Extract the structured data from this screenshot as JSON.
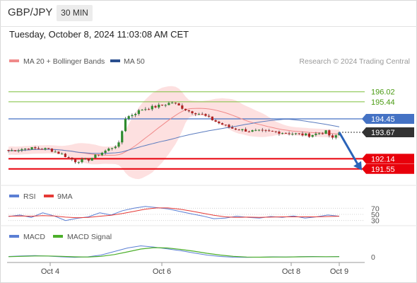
{
  "header": {
    "symbol": "GBP/JPY",
    "timeframe": "30 MIN",
    "datetime": "Tuesday, October 8, 2024 11:03:08 AM CET"
  },
  "legend": {
    "ma20_label": "MA 20 + Bollinger Bands",
    "ma50_label": "MA 50",
    "credit": "Research © 2024 Trading Central",
    "rsi_label": "RSI",
    "rsi_ma_label": "9MA",
    "macd_label": "MACD",
    "macd_signal_label": "MACD Signal"
  },
  "colors": {
    "resistance": "#7dbf3c",
    "resistance_text": "#4a9b12",
    "pivot": "#4472c4",
    "support": "#e8000b",
    "current": "#333333",
    "ma20": "#f08a8a",
    "ma50": "#5a7bbf",
    "band_fill": "#fde0e0",
    "candle_up": "#2e8b2e",
    "candle_down": "#b22222",
    "arrow": "#2a63b8",
    "rsi": "#5b7fd4",
    "rsi_ma": "#e53935",
    "macd": "#5b7fd4",
    "macd_signal": "#4caf2a"
  },
  "chart_data": [
    {
      "type": "candlestick",
      "x_axis": {
        "ticks": [
          "Oct 4",
          "Oct 6",
          "Oct 8",
          "Oct 9"
        ]
      },
      "ylim": [
        190.6,
        197.4
      ],
      "levels": [
        {
          "name": "resistance-2",
          "value": 196.02,
          "label": "196.02",
          "style": "resistance"
        },
        {
          "name": "resistance-1",
          "value": 195.44,
          "label": "195.44",
          "style": "resistance"
        },
        {
          "name": "pivot",
          "value": 194.45,
          "label": "194.45",
          "style": "pivot"
        },
        {
          "name": "last-price",
          "value": 193.67,
          "label": "193.67",
          "style": "current"
        },
        {
          "name": "support-1",
          "value": 192.14,
          "label": "192.14",
          "style": "support"
        },
        {
          "name": "support-2",
          "value": 191.55,
          "label": "191.55",
          "style": "support"
        }
      ],
      "path_hint": [
        [
          0,
          192.6
        ],
        [
          6,
          192.75
        ],
        [
          12,
          192.7
        ],
        [
          16,
          192.4
        ],
        [
          20,
          192.0
        ],
        [
          24,
          192.1
        ],
        [
          28,
          192.5
        ],
        [
          33,
          193.0
        ],
        [
          35,
          194.5
        ],
        [
          40,
          195.0
        ],
        [
          45,
          195.2
        ],
        [
          49,
          195.4
        ],
        [
          54,
          194.9
        ],
        [
          58,
          194.7
        ],
        [
          63,
          194.2
        ],
        [
          67,
          193.9
        ],
        [
          72,
          193.75
        ],
        [
          80,
          193.7
        ],
        [
          85,
          193.6
        ],
        [
          90,
          193.5
        ],
        [
          95,
          193.7
        ],
        [
          97,
          193.3
        ],
        [
          99,
          193.67
        ]
      ],
      "forecast": {
        "from": 193.67,
        "to": 191.55
      }
    },
    {
      "type": "line",
      "name": "rsi",
      "ticks": [
        "70",
        "50",
        "30"
      ],
      "series": [
        {
          "name": "RSI",
          "values": [
            43,
            48,
            40,
            55,
            45,
            30,
            37,
            42,
            55,
            48,
            62,
            70,
            76,
            72,
            68,
            60,
            52,
            45,
            36,
            38,
            44,
            40,
            38,
            43,
            40,
            45,
            38,
            42,
            48,
            44
          ]
        },
        {
          "name": "9MA",
          "values": [
            44,
            45,
            44,
            46,
            45,
            41,
            39,
            40,
            44,
            47,
            53,
            60,
            67,
            71,
            71,
            67,
            61,
            54,
            47,
            42,
            40,
            41,
            40,
            41,
            42,
            42,
            42,
            42,
            43,
            44
          ]
        }
      ]
    },
    {
      "type": "line",
      "name": "macd",
      "ticks": [
        "0"
      ],
      "series": [
        {
          "name": "MACD",
          "values": [
            0.02,
            0.05,
            0.07,
            0.04,
            0.0,
            -0.03,
            0.0,
            0.1,
            0.3,
            0.5,
            0.62,
            0.55,
            0.45,
            0.35,
            0.22,
            0.1,
            0.02,
            -0.02,
            -0.03,
            -0.02,
            0.0,
            -0.01,
            0.01,
            0.02,
            0.0,
            0.02
          ]
        },
        {
          "name": "MACD Signal",
          "values": [
            0.01,
            0.03,
            0.05,
            0.05,
            0.03,
            0.0,
            -0.01,
            0.03,
            0.13,
            0.28,
            0.44,
            0.52,
            0.5,
            0.42,
            0.32,
            0.2,
            0.1,
            0.03,
            -0.01,
            -0.02,
            -0.01,
            -0.01,
            0.0,
            0.01,
            0.01,
            0.01
          ]
        }
      ]
    }
  ]
}
